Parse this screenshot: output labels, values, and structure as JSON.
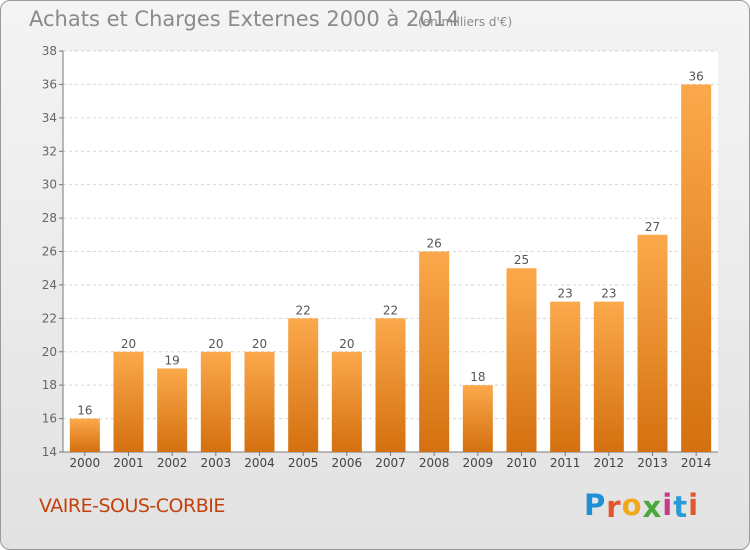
{
  "chart_data": {
    "type": "bar",
    "title": "Achats et Charges Externes 2000 à 2014",
    "unit_label": "(en milliers d'€)",
    "categories": [
      "2000",
      "2001",
      "2002",
      "2003",
      "2004",
      "2005",
      "2006",
      "2007",
      "2008",
      "2009",
      "2010",
      "2011",
      "2012",
      "2013",
      "2014"
    ],
    "values": [
      16,
      20,
      19,
      20,
      20,
      22,
      20,
      22,
      26,
      18,
      25,
      23,
      23,
      27,
      36
    ],
    "ylim": [
      14,
      38
    ],
    "yticks": [
      14,
      16,
      18,
      20,
      22,
      24,
      26,
      28,
      30,
      32,
      34,
      36,
      38
    ],
    "xlabel": "",
    "ylabel": "",
    "grid": true,
    "colors": {
      "bar_top": "#fba94c",
      "bar_bottom": "#d4700f"
    }
  },
  "footer": {
    "place": "VAIRE-SOUS-CORBIE",
    "brand": [
      "P",
      "r",
      "o",
      "x",
      "i",
      "t",
      "i"
    ],
    "brand_colors": [
      "#1f8fd6",
      "#e3562b",
      "#f2a81d",
      "#4aa83a",
      "#c73a8a",
      "#2a9bd6",
      "#e3562b"
    ]
  }
}
